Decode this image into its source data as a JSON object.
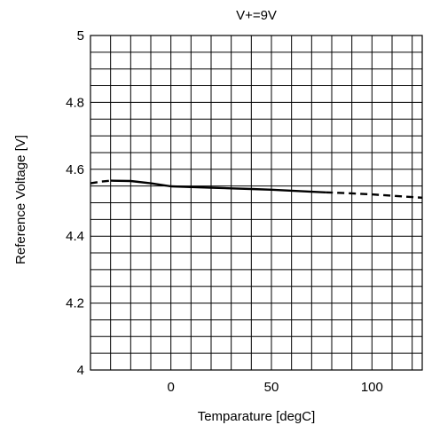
{
  "chart_data": {
    "type": "line",
    "title": "V+=9V",
    "xlabel": "Temparature   [degC]",
    "ylabel": "Reference Voltage   [V]",
    "xlim": [
      -40,
      125
    ],
    "ylim": [
      4,
      5
    ],
    "x_ticks": [
      0,
      50,
      100
    ],
    "y_ticks": [
      4,
      4.2,
      4.4,
      4.6,
      4.8,
      5
    ],
    "y_tick_labels": [
      "4",
      "4.2",
      "4.4",
      "4.6",
      "4.8",
      "5"
    ],
    "grid": true,
    "series": [
      {
        "style": "dashed",
        "x": [
          -40,
          -35,
          -30
        ],
        "y": [
          4.558,
          4.563,
          4.566
        ]
      },
      {
        "style": "solid",
        "x": [
          -30,
          -20,
          -10,
          0,
          10,
          20,
          30,
          40,
          50,
          60,
          70,
          77
        ],
        "y": [
          4.566,
          4.565,
          4.558,
          4.549,
          4.547,
          4.545,
          4.543,
          4.541,
          4.539,
          4.536,
          4.533,
          4.531
        ]
      },
      {
        "style": "dashed",
        "x": [
          77,
          90,
          100,
          110,
          120,
          125
        ],
        "y": [
          4.531,
          4.528,
          4.525,
          4.521,
          4.517,
          4.515
        ]
      }
    ]
  }
}
